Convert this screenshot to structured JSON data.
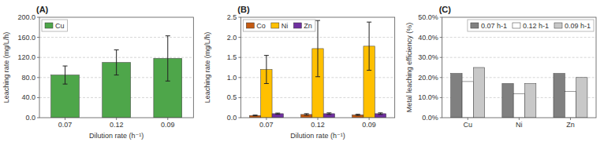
{
  "chart_data": [
    {
      "type": "bar",
      "title": "(A)",
      "xlabel": "Dilution rate (h⁻¹)",
      "ylabel": "Leaching rate (mg/L/h)",
      "categories": [
        "0.07",
        "0.12",
        "0.09"
      ],
      "series": [
        {
          "name": "Cu",
          "color": "#4ea64a",
          "values": [
            85.0,
            110.0,
            118.0
          ],
          "errors": [
            18.0,
            25.0,
            45.0
          ]
        }
      ],
      "ylim": [
        0,
        200
      ],
      "yticks": [
        {
          "value": 0,
          "label": "0.0"
        },
        {
          "value": 40,
          "label": "40.0"
        },
        {
          "value": 80,
          "label": "80.0"
        },
        {
          "value": 120,
          "label": "120.0"
        },
        {
          "value": 160,
          "label": "160.0"
        },
        {
          "value": 200,
          "label": "200.0"
        }
      ],
      "grid": true,
      "legend": "upper left"
    },
    {
      "type": "bar",
      "title": "(B)",
      "xlabel": "Dilution rate (h⁻¹)",
      "ylabel": "Leaching rate (mg/L/h)",
      "categories": [
        "0.07",
        "0.12",
        "0.09"
      ],
      "series": [
        {
          "name": "Co",
          "color": "#c55a11",
          "values": [
            0.055,
            0.08,
            0.07
          ],
          "errors": [
            0.01,
            0.02,
            0.015
          ]
        },
        {
          "name": "Ni",
          "color": "#ffc000",
          "values": [
            1.2,
            1.72,
            1.78
          ],
          "errors": [
            0.35,
            0.7,
            0.6
          ]
        },
        {
          "name": "Zn",
          "color": "#7030a0",
          "values": [
            0.1,
            0.1,
            0.1
          ],
          "errors": [
            0.015,
            0.02,
            0.02
          ]
        }
      ],
      "ylim": [
        0,
        2.5
      ],
      "yticks": [
        {
          "value": 0,
          "label": "0.0"
        },
        0.5,
        {
          "value": 1,
          "label": "1.0"
        },
        1.5,
        {
          "value": 2,
          "label": "2.0"
        },
        2.5
      ],
      "grid": true,
      "legend": "upper left"
    },
    {
      "type": "bar",
      "title": "(C)",
      "ylabel": "Metal leaching efficiency (%)",
      "categories": [
        "Cu",
        "Ni",
        "Zn"
      ],
      "series": [
        {
          "name": "0.07 h-1",
          "color": "#808080",
          "values": [
            22.0,
            17.0,
            22.0
          ]
        },
        {
          "name": "0.12 h-1",
          "color": "#ffffff",
          "values": [
            18.0,
            12.0,
            13.0
          ]
        },
        {
          "name": "0.09 h-1",
          "color": "#c8c8c8",
          "values": [
            25.0,
            17.0,
            20.0
          ]
        }
      ],
      "ylim": [
        0,
        50
      ],
      "yticks": [
        {
          "value": 0,
          "label": "0.0%"
        },
        {
          "value": 10,
          "label": "10.0%"
        },
        {
          "value": 20,
          "label": "20.0%"
        },
        {
          "value": 30,
          "label": "30.0%"
        },
        {
          "value": 40,
          "label": "40.0%"
        },
        {
          "value": 50,
          "label": "50.0%"
        }
      ],
      "grid": true,
      "legend": "upper right"
    }
  ]
}
